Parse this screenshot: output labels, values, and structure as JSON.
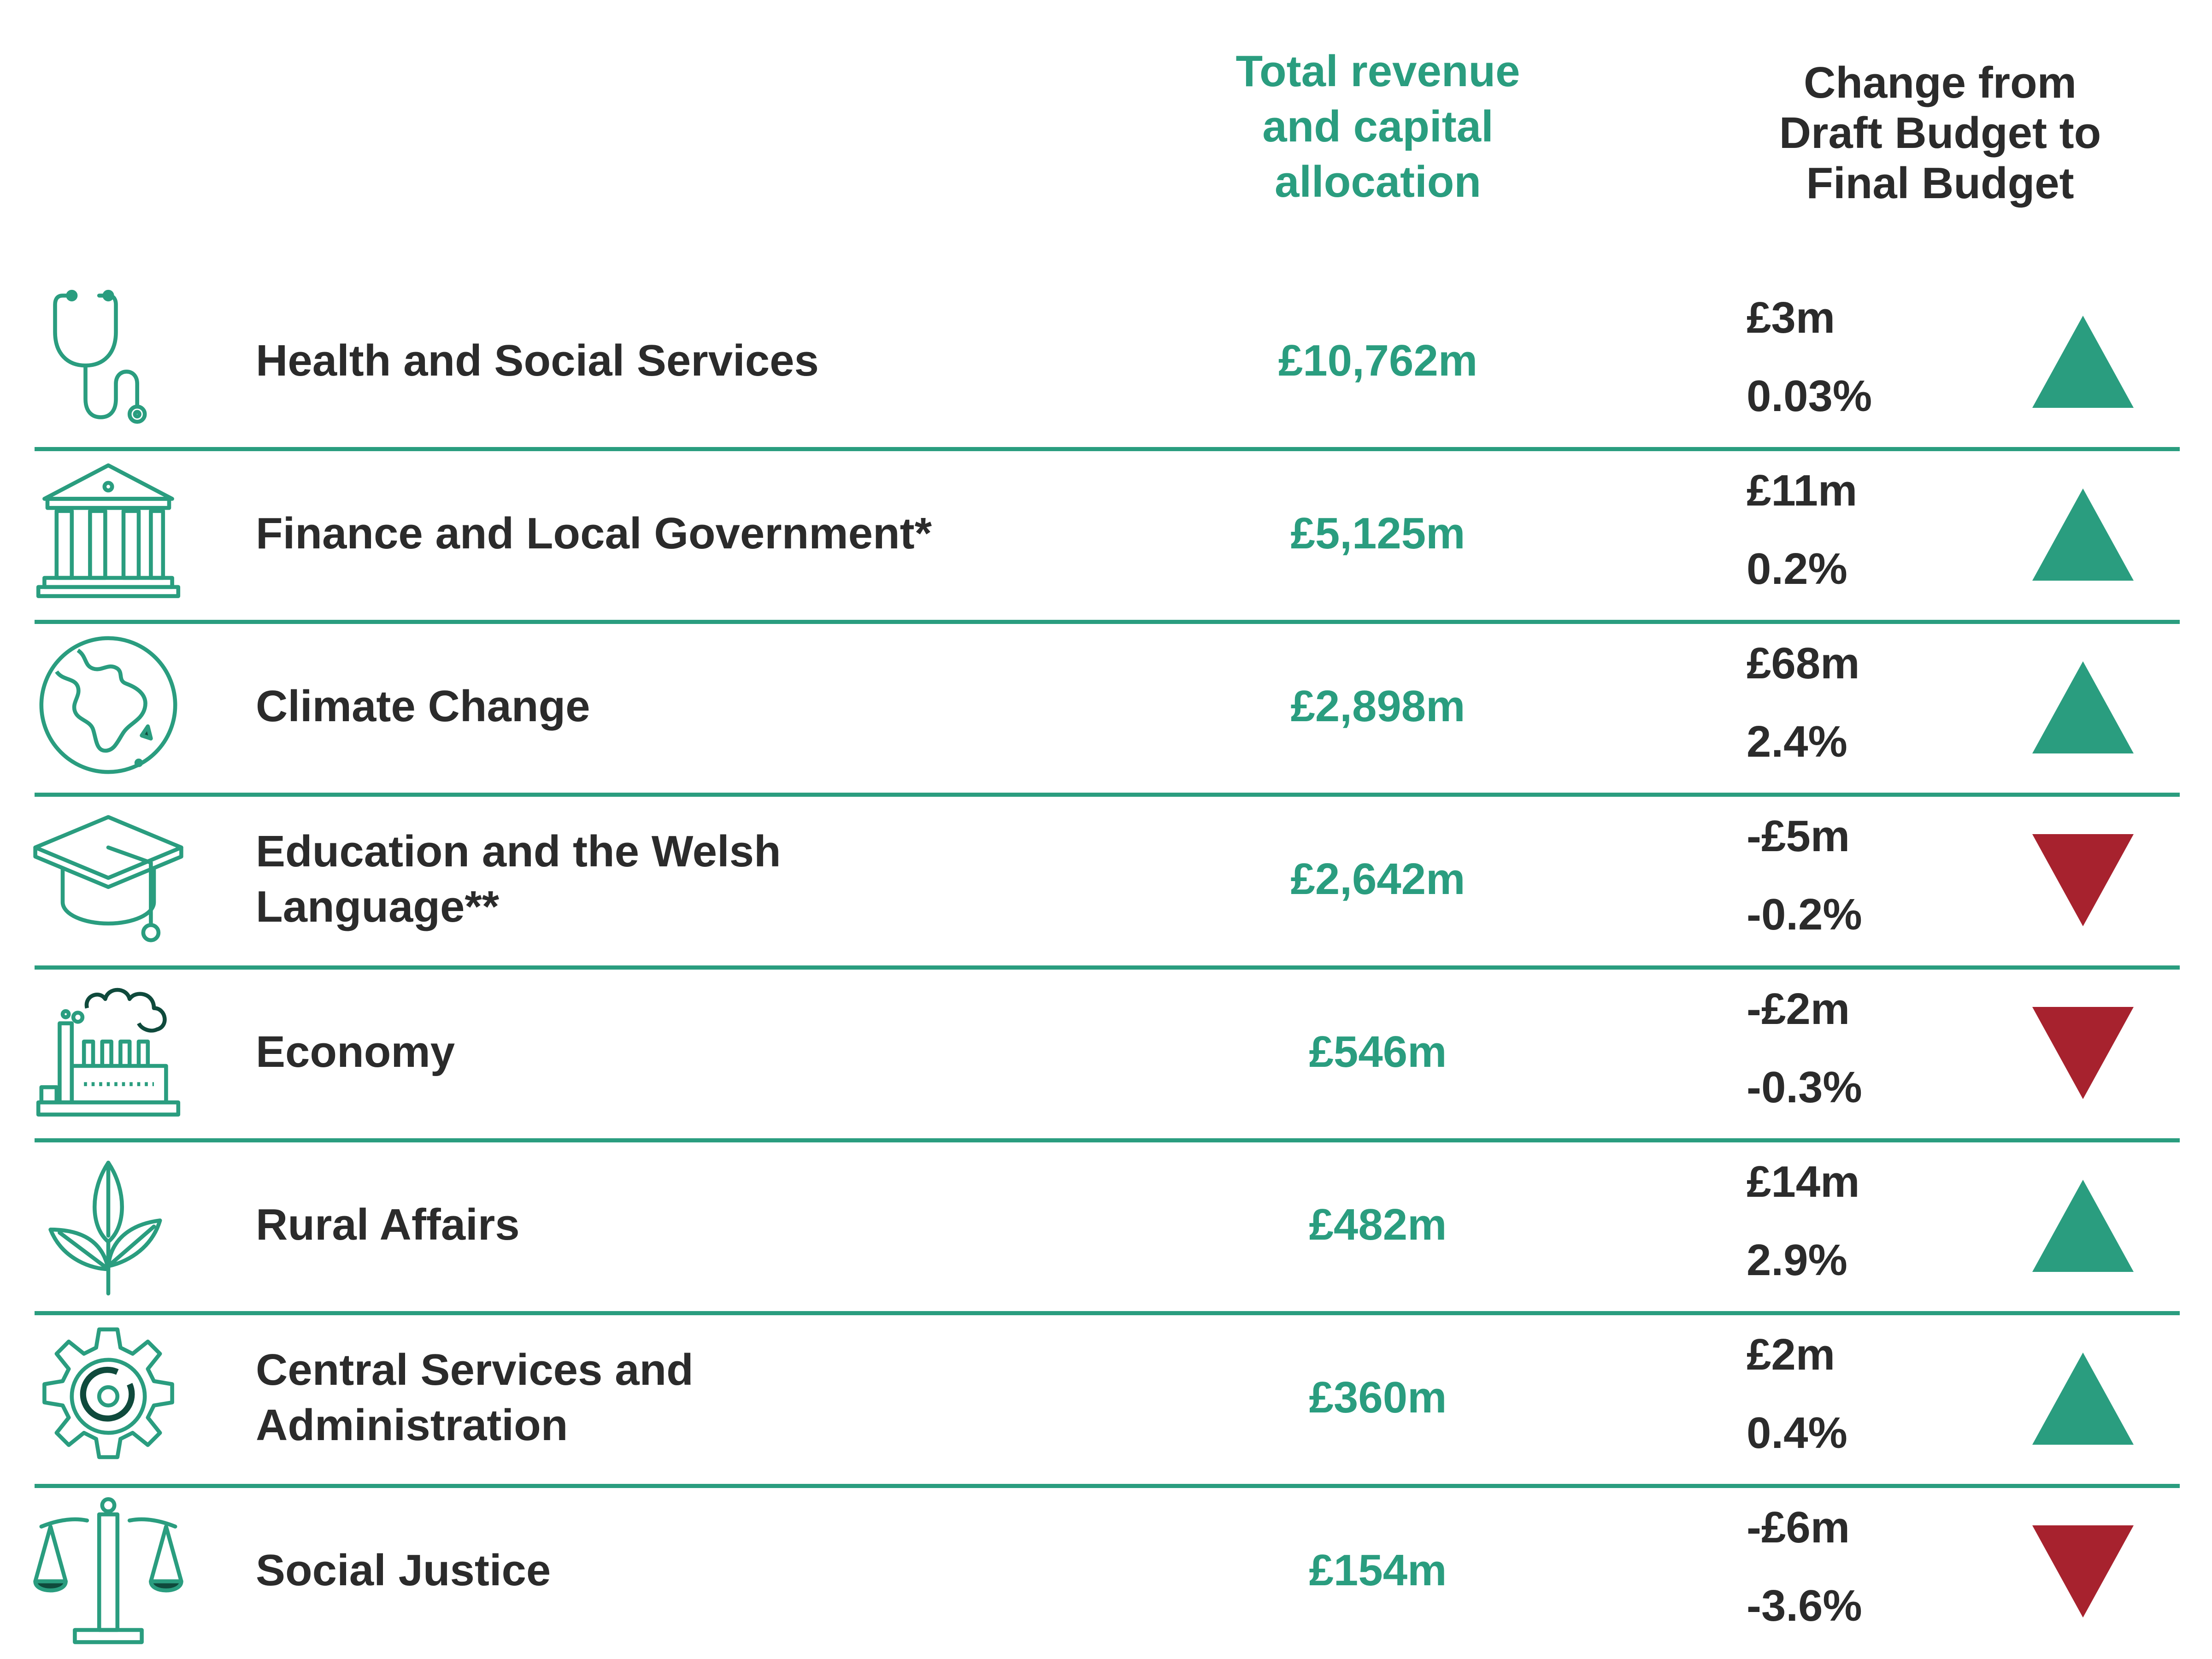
{
  "headers": {
    "allocation": [
      "Total revenue",
      "and capital",
      "allocation"
    ],
    "change": [
      "Change from",
      "Draft Budget to",
      "Final Budget"
    ]
  },
  "colors": {
    "teal": "#2a9d7f",
    "red": "#a7222e",
    "text": "#2b2b2b",
    "dark_green": "#0f4a3c"
  },
  "rows": [
    {
      "name": [
        "Health and Social Services"
      ],
      "allocation": "£10,762m",
      "change": "£3m",
      "percent": "0.03%",
      "direction": "up",
      "icon": "stethoscope-icon"
    },
    {
      "name": [
        "Finance and Local Government*"
      ],
      "allocation": "£5,125m",
      "change": "£11m",
      "percent": "0.2%",
      "direction": "up",
      "icon": "bank-building-icon"
    },
    {
      "name": [
        "Climate Change"
      ],
      "allocation": "£2,898m",
      "change": "£68m",
      "percent": "2.4%",
      "direction": "up",
      "icon": "globe-icon"
    },
    {
      "name": [
        "Education and the Welsh",
        "Language**"
      ],
      "allocation": "£2,642m",
      "change": "-£5m",
      "percent": "-0.2%",
      "direction": "down",
      "icon": "graduation-cap-icon"
    },
    {
      "name": [
        "Economy"
      ],
      "allocation": "£546m",
      "change": "-£2m",
      "percent": "-0.3%",
      "direction": "down",
      "icon": "factory-icon"
    },
    {
      "name": [
        "Rural Affairs"
      ],
      "allocation": "£482m",
      "change": "£14m",
      "percent": "2.9%",
      "direction": "up",
      "icon": "leaves-icon"
    },
    {
      "name": [
        "Central Services and",
        "Administration"
      ],
      "allocation": "£360m",
      "change": "£2m",
      "percent": "0.4%",
      "direction": "up",
      "icon": "gear-icon"
    },
    {
      "name": [
        "Social Justice"
      ],
      "allocation": "£154m",
      "change": "-£6m",
      "percent": "-3.6%",
      "direction": "down",
      "icon": "scales-icon"
    }
  ]
}
